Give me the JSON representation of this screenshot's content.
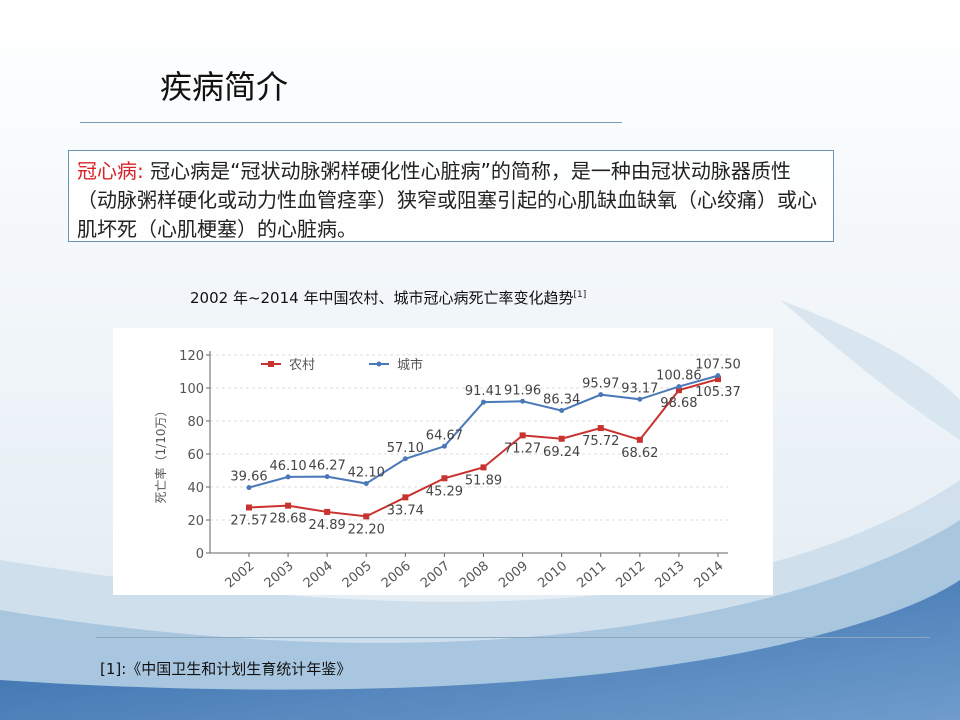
{
  "slide": {
    "title": "疾病简介",
    "definition": {
      "term": "冠心病:",
      "text": "冠心病是“冠状动脉粥样硬化性心脏病”的简称，是一种由冠状动脉器质性（动脉粥样硬化或动力性血管痉挛）狭窄或阻塞引起的心肌缺血缺氧（心绞痛）或心肌坏死（心肌梗塞）的心脏病。"
    },
    "footnote": "[1]:《中国卫生和计划生育统计年鉴》"
  },
  "chart_data": {
    "type": "line",
    "title": "2002 年~2014 年中国农村、城市冠心病死亡率变化趋势",
    "title_ref": "[1]",
    "y_label": "死亡率（1/10万）",
    "categories": [
      "2002",
      "2003",
      "2004",
      "2005",
      "2006",
      "2007",
      "2008",
      "2009",
      "2010",
      "2011",
      "2012",
      "2013",
      "2014"
    ],
    "series": [
      {
        "name": "农村",
        "color": "#c8322f",
        "marker": "square",
        "values": [
          27.57,
          28.68,
          24.89,
          22.2,
          33.74,
          45.29,
          51.89,
          71.27,
          69.24,
          75.72,
          68.62,
          98.68,
          105.37
        ],
        "value_labels": [
          "27.57",
          "28.68",
          "24.89",
          "22.20",
          "33.74",
          "45.29",
          "51.89",
          "71.27",
          "69.24",
          "75.72",
          "68.62",
          "98.68",
          "105.37"
        ]
      },
      {
        "name": "城市",
        "color": "#4a78b8",
        "marker": "dot",
        "values": [
          39.66,
          46.1,
          46.27,
          42.1,
          57.1,
          64.67,
          91.41,
          91.96,
          86.34,
          95.97,
          93.17,
          100.86,
          107.5
        ],
        "value_labels": [
          "39.66",
          "46.10",
          "46.27",
          "42.10",
          "57.10",
          "64.67",
          "91.41",
          "91.96",
          "86.34",
          "95.97",
          "93.17",
          "100.86",
          "107.50"
        ]
      }
    ],
    "ylim": [
      0,
      120
    ],
    "yticks": [
      0,
      20,
      40,
      60,
      80,
      100,
      120
    ],
    "grid": true
  }
}
